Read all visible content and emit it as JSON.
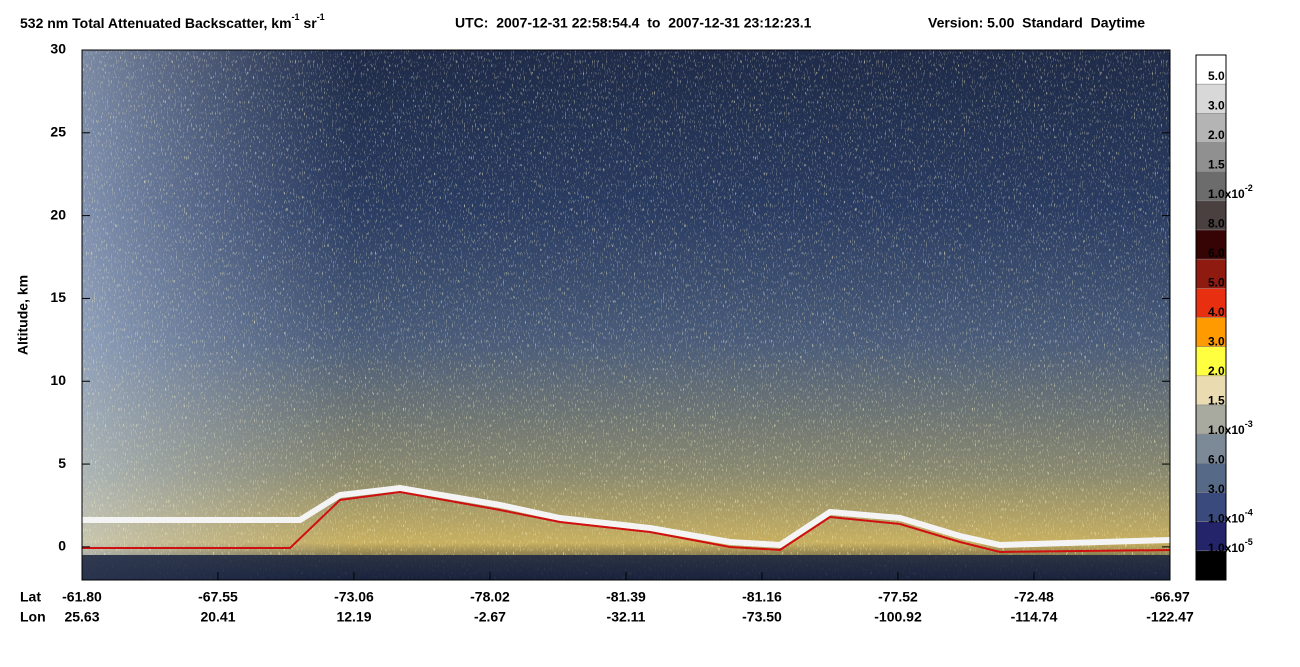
{
  "chart_data": {
    "type": "curtain",
    "title": {
      "main": "532 nm Total Attenuated Backscatter, km",
      "unit_exp": "-1",
      "unit2": " sr",
      "unit2_exp": "-1"
    },
    "utc": "UTC:  2007-12-31 22:58:54.4  to  2007-12-31 23:12:23.1",
    "version": "Version: 5.00  Standard  Daytime",
    "y_label": "Altitude, km",
    "ylim": [
      -2,
      30
    ],
    "yticks": [
      0,
      5,
      10,
      15,
      20,
      25,
      30
    ],
    "x_row_labels": [
      "Lat",
      "Lon"
    ],
    "x_ticks": [
      {
        "lat": "-61.80",
        "lon": "25.63"
      },
      {
        "lat": "-67.55",
        "lon": "20.41"
      },
      {
        "lat": "-73.06",
        "lon": "12.19"
      },
      {
        "lat": "-78.02",
        "lon": "-2.67"
      },
      {
        "lat": "-81.39",
        "lon": "-32.11"
      },
      {
        "lat": "-81.16",
        "lon": "-73.50"
      },
      {
        "lat": "-77.52",
        "lon": "-100.92"
      },
      {
        "lat": "-72.48",
        "lon": "-114.74"
      },
      {
        "lat": "-66.97",
        "lon": "-122.47"
      }
    ],
    "colorbar": {
      "colors": [
        "#ffffff",
        "#d8d8d8",
        "#b4b4b4",
        "#909090",
        "#6c6c6c",
        "#4a4040",
        "#360404",
        "#8e1a10",
        "#e83010",
        "#ff9a00",
        "#ffff40",
        "#eadcb0",
        "#a8aaa0",
        "#7c8a98",
        "#566a88",
        "#3a4a7c",
        "#24246a",
        "#000000"
      ],
      "labels": [
        "5.0",
        "3.0",
        "2.0",
        "1.5",
        {
          "base": "1.0x10",
          "exp": "-2"
        },
        "8.0",
        "6.0",
        "5.0",
        "4.0",
        "3.0",
        "2.0",
        "1.5",
        {
          "base": "1.0x10",
          "exp": "-3"
        },
        "6.0",
        "3.0",
        {
          "base": "1.0x10",
          "exp": "-4"
        },
        {
          "base": "1.0x10",
          "exp": "-5"
        }
      ]
    }
  }
}
